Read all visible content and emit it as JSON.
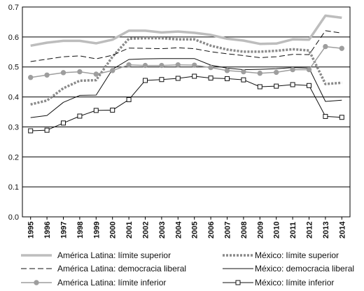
{
  "chart_data": {
    "type": "line",
    "title": "",
    "xlabel": "",
    "ylabel": "",
    "ylim": [
      0,
      0.7
    ],
    "yticks": [
      "0.0",
      "0.1",
      "0.2",
      "0.3",
      "0.4",
      "0.5",
      "0.6",
      "0.7"
    ],
    "x": [
      "1995",
      "1996",
      "1997",
      "1998",
      "1999",
      "2000",
      "2001",
      "2002",
      "2003",
      "2004",
      "2005",
      "2006",
      "2007",
      "2008",
      "2009",
      "2010",
      "2011",
      "2012",
      "2013",
      "2014"
    ],
    "grid": "horizontal",
    "legend_position": "bottom",
    "series": [
      {
        "name": "América Latina: límite superior",
        "style": "thick-solid",
        "color": "#bdbdbd",
        "values": [
          0.571,
          0.581,
          0.587,
          0.587,
          0.579,
          0.591,
          0.621,
          0.621,
          0.615,
          0.618,
          0.614,
          0.607,
          0.594,
          0.588,
          0.577,
          0.578,
          0.592,
          0.591,
          0.671,
          0.664
        ]
      },
      {
        "name": "México: límite superior",
        "style": "thick-dotted",
        "color": "#8a8a8a",
        "values": [
          0.375,
          0.388,
          0.429,
          0.454,
          0.456,
          0.534,
          0.594,
          0.596,
          0.596,
          0.592,
          0.592,
          0.571,
          0.558,
          0.551,
          0.551,
          0.554,
          0.559,
          0.555,
          0.443,
          0.447
        ]
      },
      {
        "name": "América Latina: democracia liberal",
        "style": "dashed",
        "color": "#111111",
        "values": [
          0.518,
          0.526,
          0.534,
          0.537,
          0.527,
          0.539,
          0.563,
          0.562,
          0.561,
          0.564,
          0.561,
          0.551,
          0.544,
          0.538,
          0.531,
          0.534,
          0.542,
          0.541,
          0.621,
          0.613
        ]
      },
      {
        "name": "México: democracia liberal",
        "style": "solid",
        "color": "#111111",
        "values": [
          0.331,
          0.338,
          0.382,
          0.405,
          0.406,
          0.492,
          0.525,
          0.527,
          0.528,
          0.528,
          0.528,
          0.506,
          0.496,
          0.491,
          0.492,
          0.494,
          0.498,
          0.496,
          0.385,
          0.389
        ]
      },
      {
        "name": "América Latina: límite inferior",
        "style": "circle-markers",
        "color": "#9e9e9e",
        "values": [
          0.465,
          0.473,
          0.481,
          0.484,
          0.476,
          0.488,
          0.507,
          0.505,
          0.505,
          0.507,
          0.506,
          0.498,
          0.488,
          0.484,
          0.479,
          0.482,
          0.491,
          0.491,
          0.568,
          0.562
        ]
      },
      {
        "name": "México: límite inferior",
        "style": "square-markers",
        "color": "#111111",
        "values": [
          0.287,
          0.289,
          0.313,
          0.336,
          0.355,
          0.356,
          0.391,
          0.455,
          0.458,
          0.462,
          0.469,
          0.463,
          0.461,
          0.457,
          0.434,
          0.436,
          0.441,
          0.438,
          0.335,
          0.332
        ]
      }
    ]
  }
}
